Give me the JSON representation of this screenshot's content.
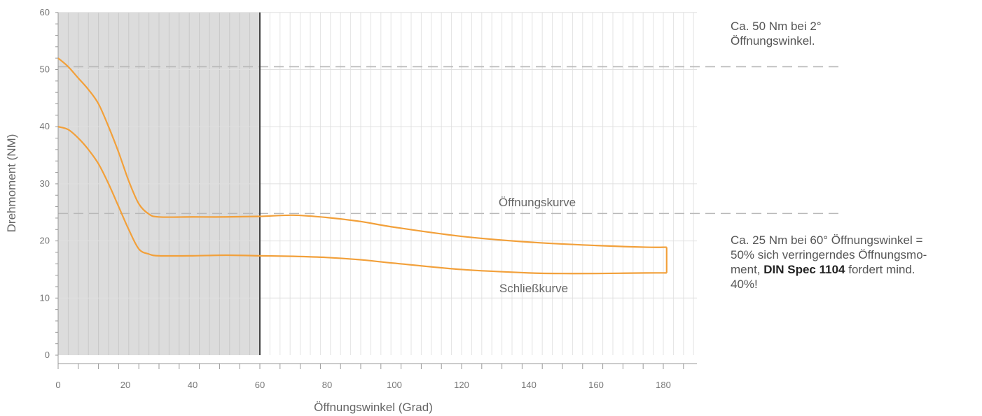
{
  "chart_data": {
    "type": "line",
    "xlabel": "Öffnungswinkel (Grad)",
    "ylabel": "Drehmoment (NM)",
    "xlim": [
      0,
      190
    ],
    "ylim": [
      0,
      60
    ],
    "x_ticks": [
      0,
      20,
      40,
      60,
      80,
      100,
      120,
      140,
      160,
      180
    ],
    "y_ticks": [
      0,
      10,
      20,
      30,
      40,
      50,
      60
    ],
    "shaded_region": [
      0,
      60
    ],
    "vertical_marker": 60,
    "reference_lines": [
      50.5,
      24.8
    ],
    "grid": true,
    "series": [
      {
        "name": "Öffnungskurve",
        "color": "#f2a03a",
        "x": [
          0,
          3,
          6,
          9,
          12,
          15,
          18,
          21,
          24,
          27,
          30,
          40,
          50,
          60,
          70,
          80,
          90,
          100,
          120,
          140,
          160,
          175,
          181
        ],
        "y": [
          52,
          50.5,
          48.5,
          46.5,
          44,
          40,
          35.5,
          30.5,
          26.5,
          24.7,
          24.2,
          24.2,
          24.2,
          24.3,
          24.5,
          24.1,
          23.4,
          22.4,
          20.8,
          19.8,
          19.2,
          18.9,
          18.9
        ]
      },
      {
        "name": "Schließkurve",
        "color": "#f2a03a",
        "x": [
          0,
          3,
          6,
          9,
          12,
          15,
          18,
          21,
          24,
          27,
          30,
          40,
          50,
          60,
          70,
          80,
          90,
          100,
          120,
          140,
          150,
          160,
          175,
          181
        ],
        "y": [
          40,
          39.5,
          38,
          36,
          33.5,
          30,
          26,
          22,
          18.6,
          17.7,
          17.4,
          17.4,
          17.5,
          17.4,
          17.3,
          17.1,
          16.7,
          16.1,
          15.0,
          14.4,
          14.3,
          14.3,
          14.4,
          14.4
        ]
      }
    ],
    "closing_segment": {
      "x": 181,
      "y_top": 18.9,
      "y_bottom": 14.4
    }
  },
  "annotations": {
    "note_top_line1": "Ca. 50 Nm bei 2°",
    "note_top_line2": "Öffnungswinkel.",
    "note_bottom_line1": "Ca. 25 Nm bei 60° Öffnungswinkel =",
    "note_bottom_line2": "50% sich verringerndes Öffnungsmo-",
    "note_bottom_line3_pre": "ment, ",
    "note_bottom_line3_bold": "DIN Spec 1104",
    "note_bottom_line3_post": " fordert mind.",
    "note_bottom_line4": "40%!"
  }
}
